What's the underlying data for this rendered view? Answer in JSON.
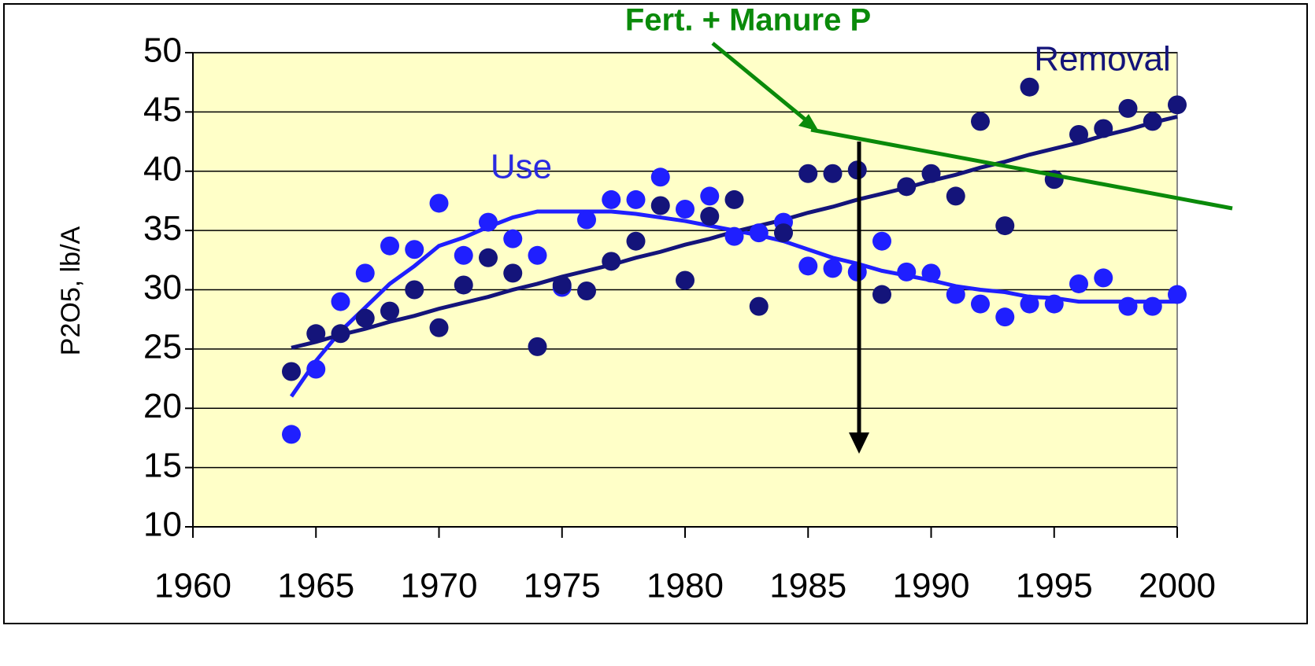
{
  "chart_data": {
    "type": "scatter",
    "y_label": "P2O5, lb/A",
    "annotations": [
      "Fert. + Manure P",
      "Use",
      "Removal"
    ],
    "x": [
      1964,
      1965,
      1966,
      1967,
      1968,
      1969,
      1970,
      1971,
      1972,
      1973,
      1974,
      1975,
      1976,
      1977,
      1978,
      1979,
      1980,
      1981,
      1982,
      1983,
      1984,
      1985,
      1986,
      1987,
      1988,
      1989,
      1990,
      1991,
      1992,
      1993,
      1994,
      1995,
      1996,
      1997,
      1998,
      1999,
      2000
    ],
    "series": [
      {
        "name": "Use",
        "color": "#1f1fff",
        "values": [
          17.8,
          23.3,
          29.0,
          31.4,
          33.7,
          33.4,
          37.3,
          32.9,
          35.7,
          34.3,
          32.9,
          30.2,
          35.9,
          37.6,
          37.6,
          39.5,
          36.8,
          37.9,
          34.5,
          34.8,
          35.7,
          32.0,
          31.8,
          31.5,
          34.1,
          31.5,
          31.4,
          29.6,
          28.8,
          27.7,
          28.8,
          28.8,
          30.5,
          31.0,
          28.6,
          28.6,
          29.6
        ],
        "trend": [
          21,
          24,
          26.5,
          28.5,
          30.5,
          32,
          33.7,
          34.4,
          35.3,
          36.1,
          36.6,
          36.6,
          36.6,
          36.6,
          36.4,
          36.1,
          35.8,
          35.4,
          35,
          34.6,
          34.1,
          33.4,
          32.7,
          32.2,
          31.6,
          31.2,
          30.8,
          30.3,
          30,
          29.8,
          29.4,
          29.3,
          29,
          29,
          29,
          29,
          29
        ]
      },
      {
        "name": "Removal",
        "color": "#14147a",
        "values": [
          23.1,
          26.3,
          26.3,
          27.6,
          28.2,
          30.0,
          26.8,
          30.4,
          32.7,
          31.4,
          25.2,
          30.4,
          29.9,
          32.4,
          34.1,
          37.1,
          30.8,
          36.2,
          37.6,
          28.6,
          34.8,
          39.8,
          39.8,
          40.1,
          29.6,
          38.7,
          39.8,
          37.9,
          44.2,
          35.4,
          47.1,
          39.3,
          43.1,
          43.6,
          45.3,
          44.2,
          45.6
        ],
        "trend": [
          25.1,
          25.6,
          26.2,
          26.7,
          27.3,
          27.8,
          28.4,
          28.9,
          29.4,
          30.0,
          30.5,
          31.1,
          31.6,
          32.1,
          32.7,
          33.2,
          33.8,
          34.3,
          34.9,
          35.4,
          35.9,
          36.5,
          37.0,
          37.6,
          38.1,
          38.6,
          39.2,
          39.7,
          40.3,
          40.8,
          41.4,
          41.9,
          42.4,
          43.0,
          43.5,
          44.1,
          44.6
        ]
      }
    ],
    "xlim": [
      1960,
      2000
    ],
    "xticks": [
      1960,
      1965,
      1970,
      1975,
      1980,
      1985,
      1990,
      1995,
      2000
    ],
    "ylim": [
      10,
      50
    ],
    "yticks": [
      10,
      15,
      20,
      25,
      30,
      35,
      40,
      45,
      50
    ],
    "grid": true,
    "plot_background": "#ffffc8"
  }
}
